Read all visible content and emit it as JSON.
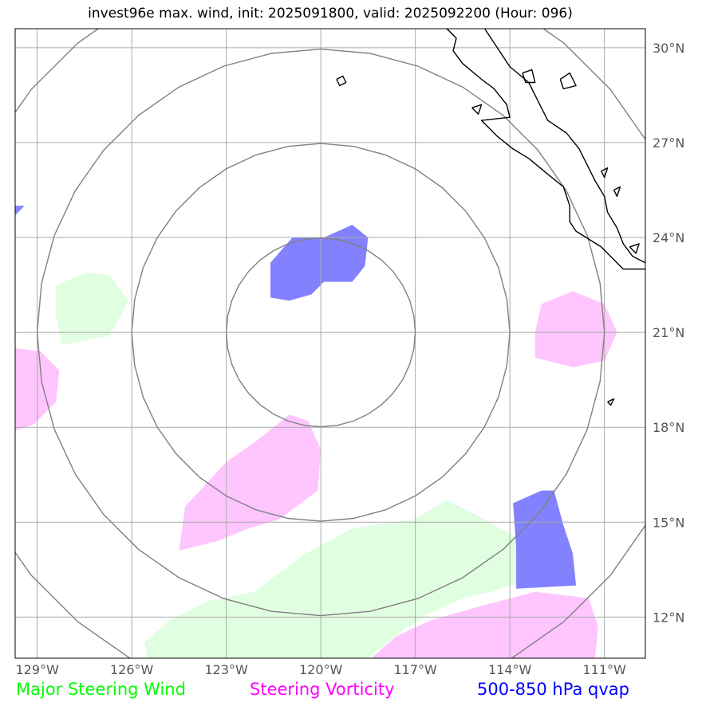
{
  "title": "invest96e max. wind, init: 2025091800, valid: 2025092200 (Hour: 096)",
  "map": {
    "lon_range": [
      -129.7,
      -109.7
    ],
    "lat_range": [
      10.7,
      30.6
    ],
    "lon_ticks": [
      -129,
      -126,
      -123,
      -120,
      -117,
      -114,
      -111
    ],
    "lat_ticks": [
      12,
      15,
      18,
      21,
      24,
      27,
      30
    ],
    "lon_tick_labels": [
      "129°W",
      "126°W",
      "123°W",
      "120°W",
      "117°W",
      "114°W",
      "111°W"
    ],
    "lat_tick_labels": [
      "12°N",
      "15°N",
      "18°N",
      "21°N",
      "24°N",
      "27°N",
      "30°N"
    ],
    "center": {
      "lon": -120.0,
      "lat": 21.0
    },
    "range_rings_deg": [
      3,
      6,
      9,
      12
    ]
  },
  "legend": {
    "wind": {
      "label": "Major Steering Wind",
      "color": "#00ff00"
    },
    "vorticity": {
      "label": "Steering Vorticity",
      "color": "#ff00ff"
    },
    "qvap": {
      "label": "500-850 hPa qvap",
      "color": "#0000ff"
    }
  },
  "colors": {
    "wind_fill": "#ddffdd",
    "vorticity_fill": "#ffbbff",
    "qvap_fill": "#7b7bff",
    "grid": "#aaaaaa",
    "rings": "#808080",
    "coast": "#000000"
  },
  "features": {
    "wind_areas": [
      [
        [
          -128.4,
          22.5
        ],
        [
          -127.4,
          22.9
        ],
        [
          -126.7,
          22.8
        ],
        [
          -126.1,
          22.0
        ],
        [
          -126.7,
          20.9
        ],
        [
          -128.2,
          20.6
        ],
        [
          -128.4,
          21.5
        ]
      ],
      [
        [
          -125.6,
          11.2
        ],
        [
          -124.8,
          11.9
        ],
        [
          -123.6,
          12.5
        ],
        [
          -122.1,
          12.8
        ],
        [
          -120.5,
          14.0
        ],
        [
          -119.0,
          14.8
        ],
        [
          -117.0,
          15.1
        ],
        [
          -116.0,
          15.7
        ],
        [
          -115.0,
          15.2
        ],
        [
          -113.6,
          14.4
        ],
        [
          -113.4,
          13.2
        ],
        [
          -114.6,
          12.8
        ],
        [
          -115.5,
          12.6
        ],
        [
          -116.6,
          12.1
        ],
        [
          -117.5,
          11.5
        ],
        [
          -118.5,
          10.7
        ],
        [
          -125.5,
          10.7
        ]
      ]
    ],
    "vorticity_areas": [
      [
        [
          -129.7,
          20.5
        ],
        [
          -128.9,
          20.4
        ],
        [
          -128.3,
          19.8
        ],
        [
          -128.4,
          18.8
        ],
        [
          -129.1,
          18.1
        ],
        [
          -129.7,
          17.9
        ]
      ],
      [
        [
          -124.5,
          14.1
        ],
        [
          -123.3,
          14.4
        ],
        [
          -122.3,
          14.8
        ],
        [
          -121.3,
          15.1
        ],
        [
          -120.1,
          16.0
        ],
        [
          -120.0,
          17.3
        ],
        [
          -120.4,
          18.2
        ],
        [
          -121.0,
          18.4
        ],
        [
          -122.0,
          17.6
        ],
        [
          -123.0,
          16.9
        ],
        [
          -124.3,
          15.5
        ]
      ],
      [
        [
          -113.2,
          21.0
        ],
        [
          -113.0,
          21.9
        ],
        [
          -112.0,
          22.3
        ],
        [
          -111.0,
          21.9
        ],
        [
          -110.6,
          21.0
        ],
        [
          -111.0,
          20.1
        ],
        [
          -112.0,
          19.9
        ],
        [
          -113.2,
          20.2
        ]
      ],
      [
        [
          -118.4,
          10.7
        ],
        [
          -117.6,
          11.4
        ],
        [
          -116.5,
          11.9
        ],
        [
          -115.1,
          12.3
        ],
        [
          -113.2,
          12.8
        ],
        [
          -111.5,
          12.6
        ],
        [
          -111.2,
          11.7
        ],
        [
          -111.3,
          10.7
        ]
      ]
    ],
    "qvap_areas": [
      [
        [
          -121.6,
          23.2
        ],
        [
          -120.9,
          24.0
        ],
        [
          -119.9,
          24.0
        ],
        [
          -119.0,
          24.4
        ],
        [
          -118.5,
          24.0
        ],
        [
          -118.6,
          23.1
        ],
        [
          -119.0,
          22.6
        ],
        [
          -119.9,
          22.6
        ],
        [
          -120.3,
          22.2
        ],
        [
          -121.0,
          22.0
        ],
        [
          -121.6,
          22.1
        ]
      ],
      [
        [
          -113.9,
          15.6
        ],
        [
          -113.0,
          16.0
        ],
        [
          -112.6,
          16.0
        ],
        [
          -112.3,
          14.9
        ],
        [
          -112.0,
          14.0
        ],
        [
          -111.9,
          13.0
        ],
        [
          -113.8,
          12.9
        ],
        [
          -113.8,
          14.2
        ]
      ],
      [
        [
          -129.7,
          25.0
        ],
        [
          -129.4,
          25.0
        ],
        [
          -129.7,
          24.7
        ]
      ]
    ],
    "coastlines": [
      [
        [
          -116.0,
          30.6
        ],
        [
          -115.7,
          30.3
        ],
        [
          -115.8,
          29.9
        ],
        [
          -115.5,
          29.5
        ],
        [
          -114.9,
          29.0
        ],
        [
          -114.5,
          28.7
        ],
        [
          -114.1,
          28.2
        ],
        [
          -114.0,
          27.8
        ],
        [
          -114.9,
          27.7
        ],
        [
          -114.4,
          27.2
        ],
        [
          -113.9,
          26.8
        ],
        [
          -113.4,
          26.5
        ],
        [
          -112.8,
          26.0
        ],
        [
          -112.3,
          25.6
        ],
        [
          -112.1,
          25.0
        ],
        [
          -112.1,
          24.5
        ],
        [
          -111.9,
          24.2
        ],
        [
          -111.1,
          23.7
        ],
        [
          -110.4,
          23.0
        ],
        [
          -109.7,
          23.0
        ]
      ],
      [
        [
          -114.8,
          30.6
        ],
        [
          -114.4,
          30.0
        ],
        [
          -114.0,
          29.4
        ],
        [
          -113.4,
          28.9
        ],
        [
          -113.1,
          28.3
        ],
        [
          -112.8,
          27.7
        ],
        [
          -112.2,
          27.3
        ],
        [
          -111.8,
          26.8
        ],
        [
          -111.5,
          26.2
        ],
        [
          -111.3,
          25.8
        ],
        [
          -111.0,
          25.3
        ],
        [
          -110.9,
          24.8
        ],
        [
          -110.6,
          24.3
        ],
        [
          -110.4,
          23.8
        ],
        [
          -110.1,
          23.4
        ],
        [
          -109.7,
          23.2
        ]
      ],
      [
        [
          -113.6,
          29.2
        ],
        [
          -113.3,
          29.3
        ],
        [
          -113.2,
          28.9
        ],
        [
          -113.5,
          28.9
        ],
        [
          -113.6,
          29.2
        ]
      ],
      [
        [
          -112.4,
          29.0
        ],
        [
          -112.1,
          29.2
        ],
        [
          -111.9,
          28.8
        ],
        [
          -112.3,
          28.7
        ],
        [
          -112.4,
          29.0
        ]
      ],
      [
        [
          -119.5,
          29.0
        ],
        [
          -119.3,
          29.1
        ],
        [
          -119.2,
          28.9
        ],
        [
          -119.4,
          28.8
        ],
        [
          -119.5,
          29.0
        ]
      ],
      [
        [
          -115.2,
          28.1
        ],
        [
          -114.9,
          28.2
        ],
        [
          -115.0,
          27.9
        ],
        [
          -115.2,
          28.1
        ]
      ],
      [
        [
          -110.7,
          25.5
        ],
        [
          -110.5,
          25.6
        ],
        [
          -110.6,
          25.3
        ],
        [
          -110.7,
          25.5
        ]
      ],
      [
        [
          -111.1,
          26.1
        ],
        [
          -110.9,
          26.2
        ],
        [
          -111.0,
          25.9
        ],
        [
          -111.1,
          26.1
        ]
      ],
      [
        [
          -110.2,
          23.7
        ],
        [
          -109.9,
          23.8
        ],
        [
          -110.0,
          23.5
        ],
        [
          -110.2,
          23.7
        ]
      ],
      [
        [
          -110.9,
          18.8
        ],
        [
          -110.7,
          18.9
        ],
        [
          -110.8,
          18.7
        ],
        [
          -110.9,
          18.8
        ]
      ]
    ]
  }
}
